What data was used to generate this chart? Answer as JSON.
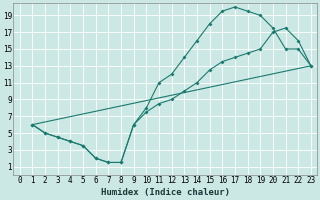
{
  "xlabel": "Humidex (Indice chaleur)",
  "ylabel": "",
  "bg_color": "#cce8e4",
  "grid_color": "#ffffff",
  "line_color": "#1a7a6e",
  "xlim": [
    -0.5,
    23.5
  ],
  "ylim": [
    0,
    20.5
  ],
  "xticks": [
    0,
    1,
    2,
    3,
    4,
    5,
    6,
    7,
    8,
    9,
    10,
    11,
    12,
    13,
    14,
    15,
    16,
    17,
    18,
    19,
    20,
    21,
    22,
    23
  ],
  "yticks": [
    1,
    3,
    5,
    7,
    9,
    11,
    13,
    15,
    17,
    19
  ],
  "line1_x": [
    1,
    2,
    3,
    4,
    5,
    6,
    7,
    8,
    9,
    10,
    11,
    12,
    13,
    14,
    15,
    16,
    17,
    18,
    19,
    20,
    21,
    22,
    23
  ],
  "line1_y": [
    6,
    5,
    4.5,
    4,
    3.5,
    2,
    1.5,
    1.5,
    6,
    8,
    11,
    12,
    14,
    16,
    18,
    19.5,
    20,
    19.5,
    19,
    17.5,
    15,
    15,
    13
  ],
  "line2_x": [
    1,
    2,
    3,
    4,
    5,
    6,
    7,
    8,
    9,
    10,
    11,
    12,
    13,
    14,
    15,
    16,
    17,
    18,
    19,
    20,
    21,
    22,
    23
  ],
  "line2_y": [
    6,
    5,
    4.5,
    4,
    3.5,
    2,
    1.5,
    1.5,
    6,
    7.5,
    8.5,
    9,
    10,
    11,
    12.5,
    13.5,
    14,
    14.5,
    15,
    17,
    17.5,
    16,
    13
  ],
  "line3_x": [
    1,
    23
  ],
  "line3_y": [
    6,
    13
  ],
  "xlabel_fontsize": 6.5,
  "tick_fontsize": 5.5
}
